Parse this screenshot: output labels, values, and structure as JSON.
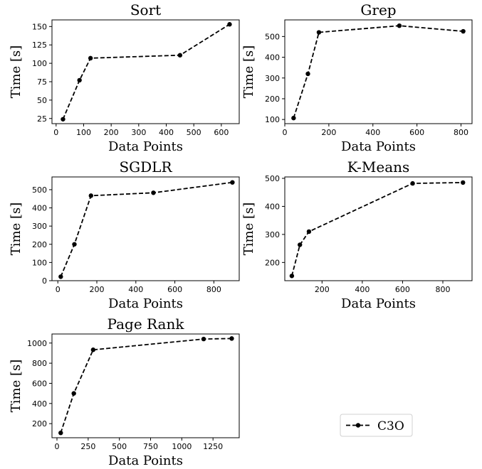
{
  "chart_data": [
    {
      "type": "line",
      "title": "Sort",
      "xlabel": "Data Points",
      "ylabel": "Time [s]",
      "xlim": [
        -15,
        665
      ],
      "ylim": [
        18,
        159
      ],
      "xticks": [
        0,
        100,
        200,
        300,
        400,
        500,
        600
      ],
      "yticks": [
        25,
        50,
        75,
        100,
        125,
        150
      ],
      "series": [
        {
          "name": "C3O",
          "x": [
            25,
            85,
            125,
            450,
            630
          ],
          "y": [
            24,
            77,
            107,
            111,
            153
          ]
        }
      ]
    },
    {
      "type": "line",
      "title": "Grep",
      "xlabel": "Data Points",
      "ylabel": "Time [s]",
      "xlim": [
        0,
        850
      ],
      "ylim": [
        80,
        580
      ],
      "xticks": [
        0,
        200,
        400,
        600,
        800
      ],
      "yticks": [
        100,
        200,
        300,
        400,
        500
      ],
      "series": [
        {
          "name": "C3O",
          "x": [
            40,
            105,
            155,
            520,
            810
          ],
          "y": [
            107,
            320,
            520,
            552,
            525
          ]
        }
      ]
    },
    {
      "type": "line",
      "title": "SGDLR",
      "xlabel": "Data Points",
      "ylabel": "Time [s]",
      "xlim": [
        -30,
        930
      ],
      "ylim": [
        0,
        570
      ],
      "xticks": [
        0,
        200,
        400,
        600,
        800
      ],
      "yticks": [
        0,
        100,
        200,
        300,
        400,
        500
      ],
      "series": [
        {
          "name": "C3O",
          "x": [
            15,
            85,
            170,
            490,
            895
          ],
          "y": [
            22,
            200,
            467,
            483,
            540
          ]
        }
      ]
    },
    {
      "type": "line",
      "title": "K-Means",
      "xlabel": "Data Points",
      "ylabel": "Time [s]",
      "xlim": [
        15,
        945
      ],
      "ylim": [
        135,
        505
      ],
      "xticks": [
        200,
        400,
        600,
        800
      ],
      "yticks": [
        200,
        300,
        400,
        500
      ],
      "series": [
        {
          "name": "C3O",
          "x": [
            50,
            90,
            135,
            650,
            900
          ],
          "y": [
            152,
            263,
            310,
            482,
            485
          ]
        }
      ]
    },
    {
      "type": "line",
      "title": "Page Rank",
      "xlabel": "Data Points",
      "ylabel": "Time [s]",
      "xlim": [
        -40,
        1460
      ],
      "ylim": [
        60,
        1090
      ],
      "xticks": [
        0,
        250,
        500,
        750,
        1000,
        1250
      ],
      "yticks": [
        200,
        400,
        600,
        800,
        1000
      ],
      "series": [
        {
          "name": "C3O",
          "x": [
            30,
            135,
            290,
            1175,
            1400
          ],
          "y": [
            108,
            500,
            933,
            1040,
            1045
          ]
        }
      ]
    }
  ],
  "legend": {
    "label": "C3O"
  }
}
